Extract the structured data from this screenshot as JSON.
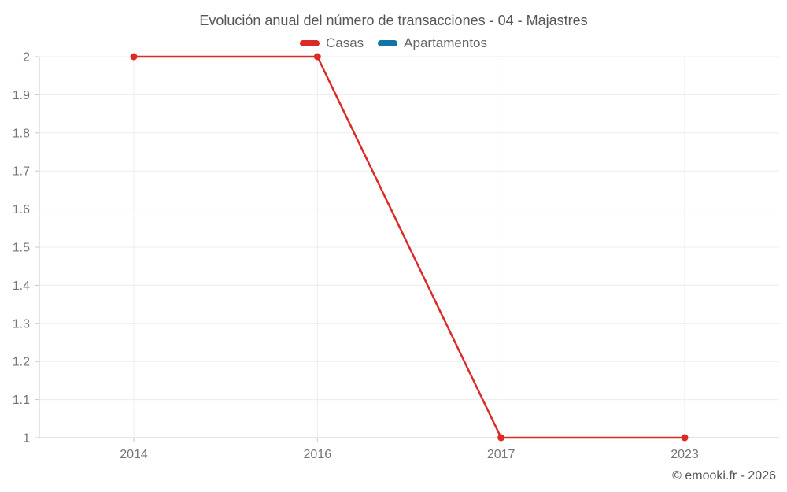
{
  "chart": {
    "title": "Evolución anual del número de transacciones - 04 - Majastres",
    "legend": [
      {
        "label": "Casas",
        "color": "#db2b27"
      },
      {
        "label": "Apartamentos",
        "color": "#1274a5"
      }
    ]
  },
  "chart_data": {
    "type": "line",
    "title": "Evolución anual del número de transacciones - 04 - Majastres",
    "categories": [
      "2014",
      "2016",
      "2017",
      "2023"
    ],
    "series": [
      {
        "name": "Casas",
        "color": "#db2b27",
        "values": [
          2,
          2,
          1,
          1
        ]
      },
      {
        "name": "Apartamentos",
        "color": "#1274a5",
        "values": []
      }
    ],
    "xlabel": "",
    "ylabel": "",
    "ylim": [
      1,
      2
    ],
    "ytick_step": 0.1,
    "ytick_labels": [
      "1",
      "1.1",
      "1.2",
      "1.3",
      "1.4",
      "1.5",
      "1.6",
      "1.7",
      "1.8",
      "1.9",
      "2"
    ],
    "grid": true,
    "legend_position": "top",
    "marker": "circle"
  },
  "footer": {
    "copyright": "© emooki.fr - 2026"
  },
  "colors": {
    "grid": "#ececec",
    "axis": "#c9c9c9",
    "tick_text": "#757575",
    "series_casas": "#db2b27",
    "series_apartamentos": "#1274a5"
  }
}
